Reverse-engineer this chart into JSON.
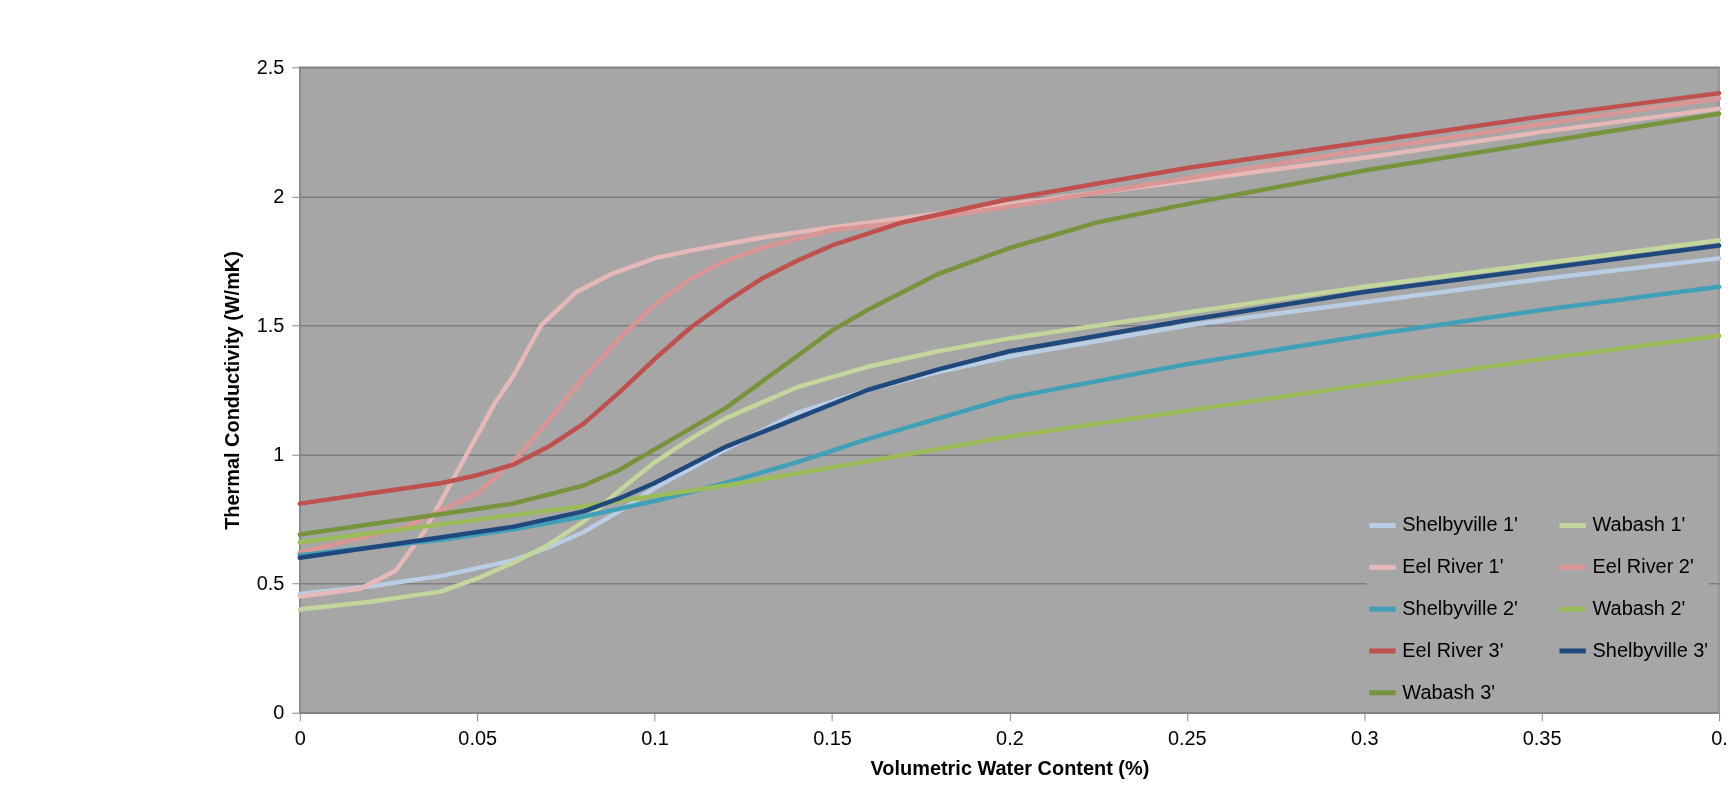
{
  "chart_data": {
    "type": "line",
    "xlabel": "Volumetric Water Content (%)",
    "ylabel": "Thermal Conductivity (W/mK)",
    "xlim": [
      0,
      0.4
    ],
    "xticks": [
      0,
      0.05,
      0.1,
      0.15,
      0.2,
      0.25,
      0.3,
      0.35,
      {
        "value": 0.4,
        "label": "0."
      }
    ],
    "ylim": [
      0,
      2.5
    ],
    "yticks": [
      0,
      0.5,
      1,
      1.5,
      2,
      2.5
    ],
    "grid": "y",
    "legend": "bottom right",
    "marker": "none",
    "line_style": "solid",
    "series": [
      {
        "name": "Shelbyville 1'",
        "color": "#b9cde5",
        "x": [
          0,
          0.02,
          0.04,
          0.05,
          0.06,
          0.07,
          0.08,
          0.09,
          0.1,
          0.12,
          0.14,
          0.16,
          0.18,
          0.2,
          0.25,
          0.3,
          0.35,
          0.4
        ],
        "values": [
          0.46,
          0.49,
          0.53,
          0.56,
          0.59,
          0.64,
          0.7,
          0.78,
          0.87,
          1.02,
          1.16,
          1.25,
          1.32,
          1.38,
          1.5,
          1.59,
          1.68,
          1.76
        ]
      },
      {
        "name": "Wabash 1'",
        "color": "#c3d69b",
        "x": [
          0,
          0.02,
          0.04,
          0.05,
          0.06,
          0.07,
          0.08,
          0.09,
          0.1,
          0.11,
          0.12,
          0.13,
          0.14,
          0.16,
          0.18,
          0.2,
          0.25,
          0.3,
          0.35,
          0.4
        ],
        "values": [
          0.4,
          0.43,
          0.47,
          0.52,
          0.58,
          0.65,
          0.74,
          0.86,
          0.97,
          1.06,
          1.14,
          1.2,
          1.26,
          1.34,
          1.4,
          1.45,
          1.55,
          1.65,
          1.74,
          1.83
        ]
      },
      {
        "name": "Eel River 1'",
        "color": "#e6b9b8",
        "x": [
          0,
          0.017,
          0.027,
          0.035,
          0.045,
          0.055,
          0.06,
          0.068,
          0.078,
          0.088,
          0.1,
          0.11,
          0.13,
          0.15,
          0.2,
          0.25,
          0.3,
          0.35,
          0.4
        ],
        "values": [
          0.45,
          0.48,
          0.55,
          0.7,
          0.95,
          1.2,
          1.3,
          1.5,
          1.63,
          1.7,
          1.76,
          1.79,
          1.84,
          1.88,
          1.97,
          2.06,
          2.15,
          2.25,
          2.34
        ]
      },
      {
        "name": "Eel River 2'",
        "color": "#d99694",
        "x": [
          0,
          0.03,
          0.05,
          0.06,
          0.07,
          0.08,
          0.09,
          0.1,
          0.11,
          0.12,
          0.13,
          0.15,
          0.17,
          0.2,
          0.25,
          0.3,
          0.35,
          0.4
        ],
        "values": [
          0.62,
          0.72,
          0.85,
          0.97,
          1.13,
          1.3,
          1.45,
          1.58,
          1.68,
          1.75,
          1.8,
          1.87,
          1.9,
          1.96,
          2.07,
          2.18,
          2.28,
          2.38
        ]
      },
      {
        "name": "Shelbyville 2'",
        "color": "#41a0b8",
        "x": [
          0,
          0.04,
          0.06,
          0.08,
          0.1,
          0.12,
          0.14,
          0.16,
          0.18,
          0.2,
          0.25,
          0.3,
          0.35,
          0.4
        ],
        "values": [
          0.61,
          0.67,
          0.71,
          0.76,
          0.82,
          0.89,
          0.97,
          1.06,
          1.14,
          1.22,
          1.35,
          1.46,
          1.56,
          1.65
        ]
      },
      {
        "name": "Wabash 2'",
        "color": "#9bbb59",
        "x": [
          0,
          0.04,
          0.08,
          0.1,
          0.12,
          0.15,
          0.2,
          0.25,
          0.3,
          0.35,
          0.4
        ],
        "values": [
          0.66,
          0.73,
          0.8,
          0.84,
          0.88,
          0.95,
          1.07,
          1.17,
          1.27,
          1.37,
          1.46
        ]
      },
      {
        "name": "Eel River 3'",
        "color": "#c0504d",
        "x": [
          0,
          0.02,
          0.04,
          0.05,
          0.06,
          0.07,
          0.08,
          0.09,
          0.1,
          0.11,
          0.12,
          0.13,
          0.14,
          0.15,
          0.17,
          0.2,
          0.25,
          0.3,
          0.35,
          0.4
        ],
        "values": [
          0.81,
          0.85,
          0.89,
          0.92,
          0.96,
          1.03,
          1.12,
          1.24,
          1.37,
          1.49,
          1.59,
          1.68,
          1.75,
          1.81,
          1.9,
          1.99,
          2.11,
          2.21,
          2.31,
          2.4
        ]
      },
      {
        "name": "Shelbyville 3'",
        "color": "#1f497d",
        "x": [
          0,
          0.02,
          0.04,
          0.06,
          0.08,
          0.09,
          0.1,
          0.12,
          0.14,
          0.16,
          0.18,
          0.2,
          0.25,
          0.3,
          0.35,
          0.4
        ],
        "values": [
          0.6,
          0.64,
          0.68,
          0.72,
          0.78,
          0.83,
          0.89,
          1.03,
          1.14,
          1.25,
          1.33,
          1.4,
          1.52,
          1.63,
          1.72,
          1.81
        ]
      },
      {
        "name": "Wabash 3'",
        "color": "#77933c",
        "x": [
          0,
          0.02,
          0.04,
          0.06,
          0.08,
          0.09,
          0.1,
          0.12,
          0.14,
          0.15,
          0.16,
          0.18,
          0.2,
          0.225,
          0.25,
          0.3,
          0.35,
          0.4
        ],
        "values": [
          0.69,
          0.73,
          0.77,
          0.81,
          0.88,
          0.94,
          1.02,
          1.18,
          1.38,
          1.48,
          1.56,
          1.7,
          1.8,
          1.9,
          1.97,
          2.1,
          2.21,
          2.32
        ]
      }
    ]
  }
}
